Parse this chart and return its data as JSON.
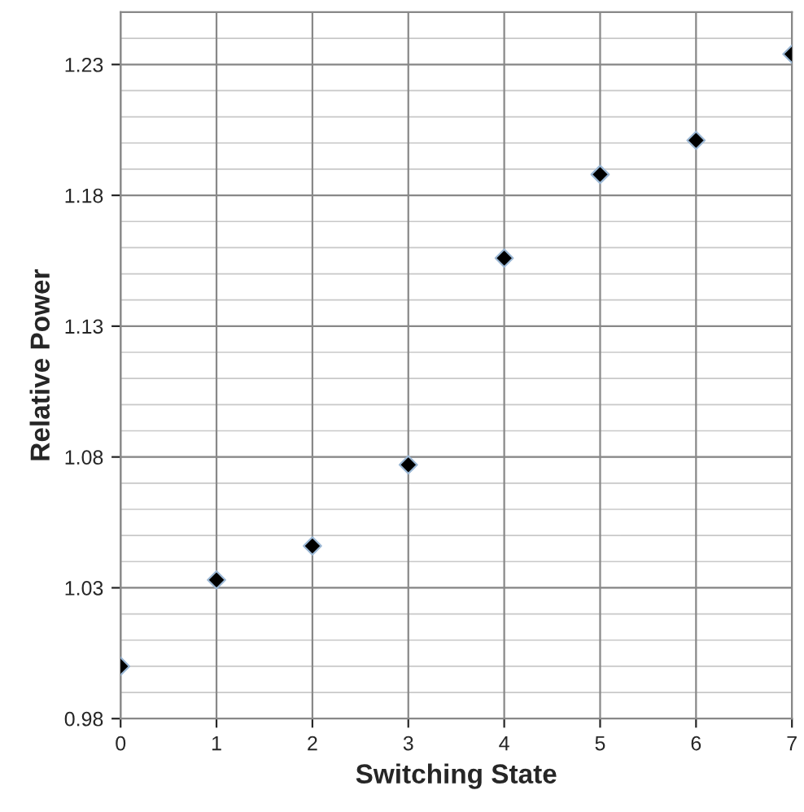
{
  "chart_data": {
    "type": "scatter",
    "xlabel": "Switching State",
    "ylabel": "Relative Power",
    "x": [
      0,
      1,
      2,
      3,
      4,
      5,
      6,
      7
    ],
    "series": [
      {
        "color": "#000000",
        "values": [
          1.0,
          1.033,
          1.046,
          1.077,
          1.156,
          1.188,
          1.201,
          1.234
        ]
      }
    ],
    "xlim": [
      0,
      7
    ],
    "xticks": [
      0,
      1,
      2,
      3,
      4,
      5,
      6,
      7
    ],
    "ylim": [
      0.98,
      1.25
    ],
    "yticks": [
      0.98,
      1.03,
      1.08,
      1.13,
      1.18,
      1.23
    ],
    "grid": true,
    "marker": "diamond",
    "legend": false
  }
}
